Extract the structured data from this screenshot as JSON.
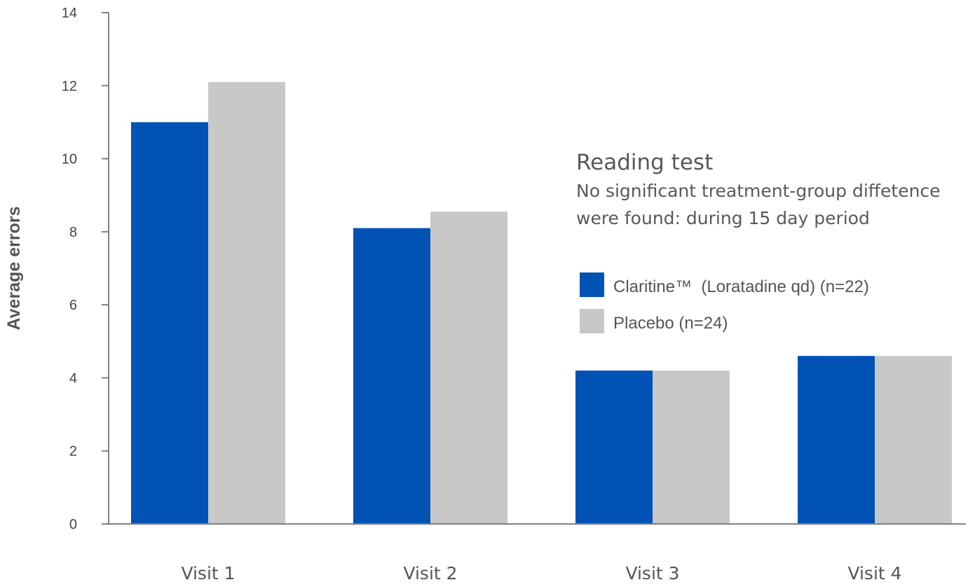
{
  "chart_data": {
    "type": "bar",
    "ylabel": "Average errors",
    "xlabel": "",
    "ylim": [
      0,
      14
    ],
    "yticks": [
      0,
      2,
      4,
      6,
      8,
      10,
      12,
      14
    ],
    "grid": false,
    "legend_position": "right",
    "categories": [
      "Visit 1",
      "Visit 2",
      "Visit 3",
      "Visit 4"
    ],
    "series": [
      {
        "name": "Claritine™  (Loratadine qd) (n=22)",
        "color": "#0052b4",
        "values": [
          11.0,
          8.1,
          4.2,
          4.6
        ]
      },
      {
        "name": "Placebo (n=24)",
        "color": "#c8c8c8",
        "values": [
          12.1,
          8.55,
          4.2,
          4.6
        ]
      }
    ],
    "annotations": {
      "title": "Reading test",
      "lines": [
        "No significant treatment-group diffetence",
        "were found: during 15 day period"
      ]
    }
  }
}
